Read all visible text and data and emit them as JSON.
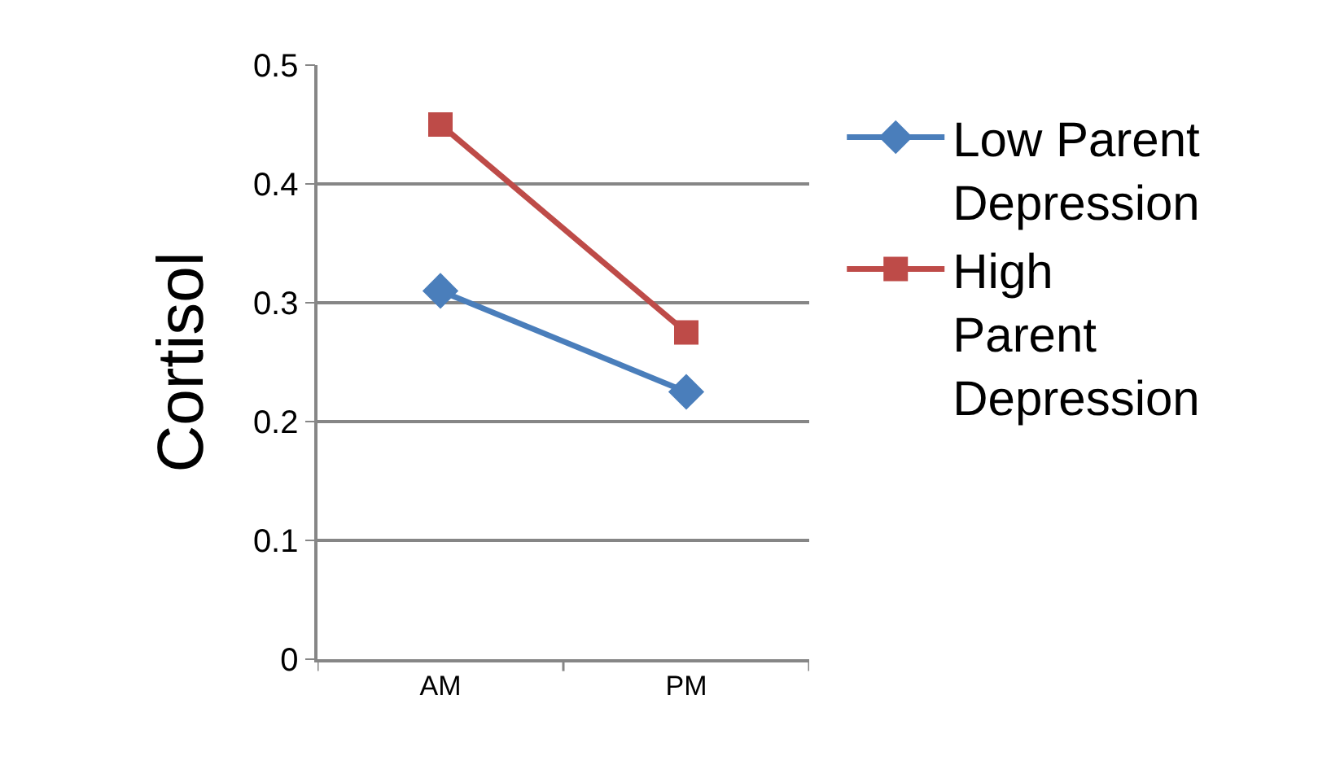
{
  "chart_data": {
    "type": "line",
    "ylabel": "Cortisol",
    "categories": [
      "AM",
      "PM"
    ],
    "series": [
      {
        "name": "Low Parent Depression",
        "color": "#4a7ebb",
        "marker": "diamond",
        "values": [
          0.31,
          0.225
        ]
      },
      {
        "name": "High Parent Depression",
        "color": "#be4b48",
        "marker": "square",
        "values": [
          0.45,
          0.275
        ]
      }
    ],
    "ylim": [
      0,
      0.5
    ],
    "yticks": [
      0,
      0.1,
      0.2,
      0.3,
      0.4,
      0.5
    ],
    "grid": "y",
    "legend": "right"
  }
}
